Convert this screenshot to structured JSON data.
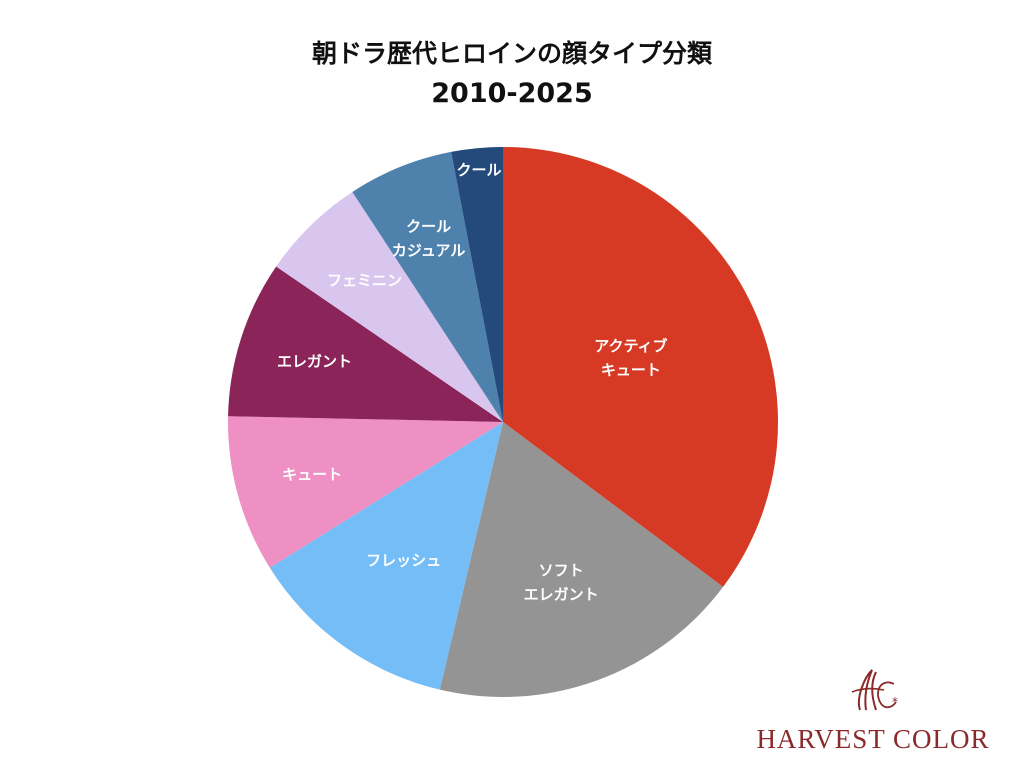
{
  "title": {
    "line1": "朝ドラ歴代ヒロインの顔タイプ分類",
    "line2": "2010-2025"
  },
  "logo": {
    "text": "HARVEST COLOR",
    "color": "#8a2a2a"
  },
  "chart_data": {
    "type": "pie",
    "title": "朝ドラ歴代ヒロインの顔タイプ分類 2010-2025",
    "start_angle_deg": 0,
    "direction": "clockwise",
    "legend": "none",
    "slices": [
      {
        "label_lines": [
          "アクティブ",
          "キュート"
        ],
        "value": 10.5,
        "color": "#d63a25"
      },
      {
        "label_lines": [
          "ソフト",
          "エレガント"
        ],
        "value": 5.5,
        "color": "#949494"
      },
      {
        "label_lines": [
          "フレッシュ"
        ],
        "value": 3.7,
        "color": "#74bdf7"
      },
      {
        "label_lines": [
          "キュート"
        ],
        "value": 2.75,
        "color": "#ee90c4"
      },
      {
        "label_lines": [
          "エレガント"
        ],
        "value": 2.75,
        "color": "#8b2459"
      },
      {
        "label_lines": [
          "フェミニン"
        ],
        "value": 1.85,
        "color": "#d8c6ee"
      },
      {
        "label_lines": [
          "クール",
          "カジュアル"
        ],
        "value": 1.85,
        "color": "#4f81ad"
      },
      {
        "label_lines": [
          "クール"
        ],
        "value": 0.9,
        "color": "#234a7a"
      }
    ]
  }
}
